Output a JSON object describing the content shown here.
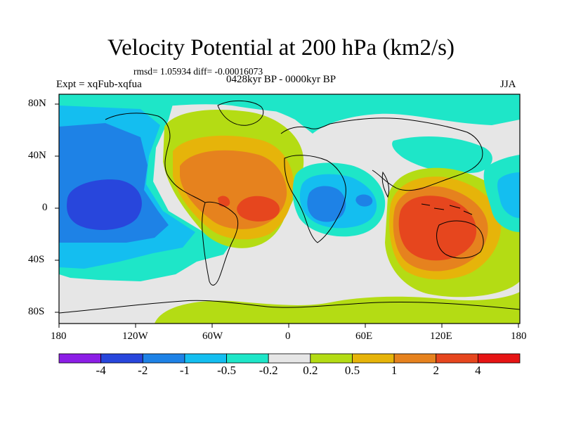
{
  "figure": {
    "title": "Velocity Potential at 200 hPa (km2/s)",
    "stats": "rmsd= 1.05934 diff= -0.00016073",
    "experiment": "Expt = xqFub-xqfua",
    "period": "0428kyr BP - 0000kyr BP",
    "season": "JJA"
  },
  "axes": {
    "x_ticks": [
      "180",
      "120W",
      "60W",
      "0",
      "60E",
      "120E",
      "180"
    ],
    "y_ticks": [
      "80N",
      "40N",
      "0",
      "40S",
      "80S"
    ]
  },
  "colorbar": {
    "labels": [
      "-4",
      "-2",
      "-1",
      "-0.5",
      "-0.2",
      "0.2",
      "0.5",
      "1",
      "2",
      "4"
    ],
    "colors": [
      "#8c1ee6",
      "#2846dc",
      "#1e82e6",
      "#14bef0",
      "#1ee6c8",
      "#e6e6e6",
      "#b4dc14",
      "#e6b40a",
      "#e6821e",
      "#e6461e",
      "#e61414"
    ]
  }
}
